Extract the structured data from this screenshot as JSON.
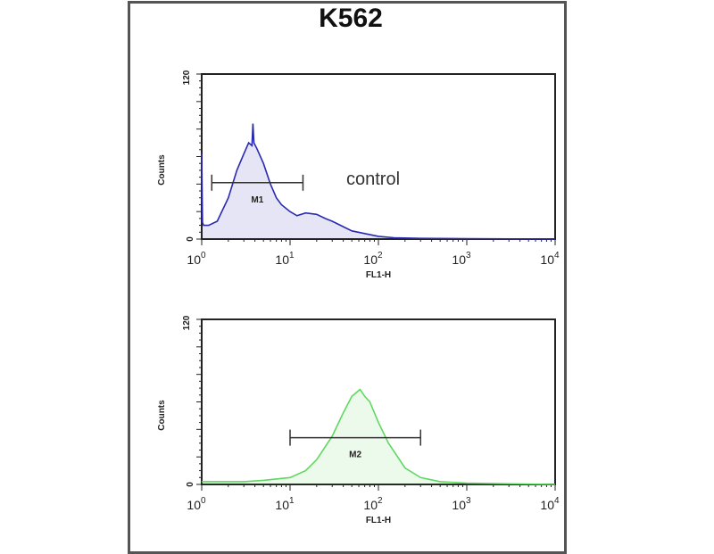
{
  "title": "K562",
  "colors": {
    "control": "#2a2ab0",
    "sample": "#5fd85f",
    "axes": "#222222"
  },
  "chart_data": [
    {
      "type": "area",
      "title": "K562",
      "xlabel": "FL1-H",
      "ylabel": "Counts",
      "xscale": "log",
      "xlim": [
        1,
        10000
      ],
      "ylim": [
        0,
        120
      ],
      "xticks": [
        "10^0",
        "10^1",
        "10^2",
        "10^3",
        "10^4"
      ],
      "yticks": [
        "0",
        "120"
      ],
      "annotation": "control",
      "gate": {
        "label": "M1",
        "x_range": [
          1.3,
          14
        ],
        "y": 41
      },
      "series": [
        {
          "color": "#2a2ab0",
          "x": [
            1.0,
            1.02,
            1.05,
            1.2,
            1.5,
            2,
            2.5,
            3,
            3.4,
            3.7,
            3.8,
            3.9,
            4.2,
            5,
            6,
            7,
            8,
            10,
            12,
            15,
            20,
            25,
            30,
            40,
            50,
            70,
            100,
            150,
            300,
            1000,
            10000
          ],
          "y": [
            62,
            12,
            10,
            10,
            13,
            30,
            50,
            62,
            70,
            68,
            84,
            70,
            66,
            55,
            40,
            30,
            25,
            20,
            17,
            19,
            18,
            15,
            13,
            9,
            6,
            4,
            2,
            1,
            0.5,
            0.3,
            0
          ]
        }
      ]
    },
    {
      "type": "area",
      "xlabel": "FL1-H",
      "ylabel": "Counts",
      "xscale": "log",
      "xlim": [
        1,
        10000
      ],
      "ylim": [
        0,
        120
      ],
      "xticks": [
        "10^0",
        "10^1",
        "10^2",
        "10^3",
        "10^4"
      ],
      "yticks": [
        "0",
        "120"
      ],
      "gate": {
        "label": "M2",
        "x_range": [
          10,
          300
        ],
        "y": 34
      },
      "series": [
        {
          "color": "#5fd85f",
          "x": [
            1,
            3,
            5,
            10,
            15,
            20,
            30,
            40,
            50,
            62,
            70,
            80,
            100,
            130,
            200,
            300,
            500,
            1000,
            10000
          ],
          "y": [
            2,
            2,
            3,
            5,
            10,
            18,
            35,
            52,
            64,
            69,
            64,
            60,
            45,
            30,
            12,
            5,
            2,
            1,
            0
          ]
        }
      ]
    }
  ]
}
